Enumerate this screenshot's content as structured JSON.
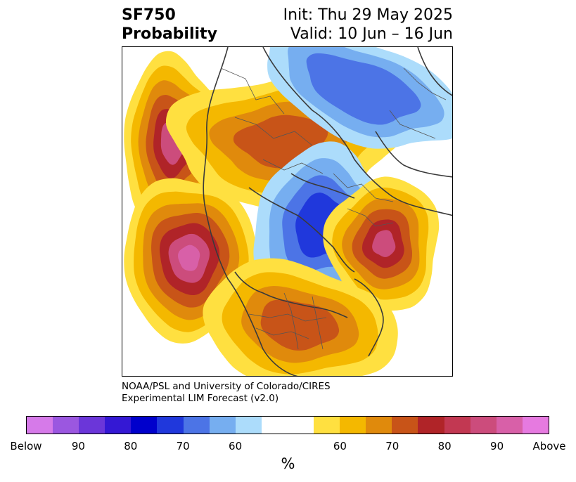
{
  "title": {
    "left_line1": "SF750",
    "left_line2": "Probability",
    "right_line1": "Init: Thu 29 May 2025",
    "right_line2": "Valid: 10 Jun – 16 Jun"
  },
  "credit": {
    "line1": "NOAA/PSL and University of Colorado/CIRES",
    "line2": "Experimental LIM Forecast (v2.0)"
  },
  "colorbar": {
    "unit": "%",
    "labels": [
      "Below",
      "90",
      "80",
      "70",
      "60",
      "60",
      "70",
      "80",
      "90",
      "Above"
    ],
    "colors": [
      "#d67ae9",
      "#9b57e0",
      "#6b36d9",
      "#3418d4",
      "#0000cc",
      "#2038dc",
      "#4c74e6",
      "#76aef0",
      "#acdcfb",
      "#ffffff",
      "#ffe040",
      "#f4b800",
      "#e08a0c",
      "#c85418",
      "#b02428",
      "#c23852",
      "#cc4c7c",
      "#d860a8",
      "#e67ae0"
    ]
  },
  "map": {
    "projection": "north-polar-stereographic",
    "features": [
      {
        "name": "pacific-west-max",
        "category": "Above",
        "colors": [
          "#ffe040",
          "#f4b800",
          "#e08a0c",
          "#c85418",
          "#b02428",
          "#cc4c7c"
        ]
      },
      {
        "name": "pacific-east-max",
        "category": "Above",
        "colors": [
          "#ffe040",
          "#f4b800",
          "#e08a0c",
          "#c85418",
          "#b02428",
          "#cc4c7c",
          "#d860a8"
        ]
      },
      {
        "name": "east-asia-warm",
        "category": "Above",
        "colors": [
          "#ffe040",
          "#f4b800",
          "#e08a0c",
          "#c85418"
        ]
      },
      {
        "name": "europe-arctic-cold",
        "category": "Below",
        "colors": [
          "#acdcfb",
          "#76aef0",
          "#4c74e6",
          "#2038dc"
        ]
      },
      {
        "name": "north-atlantic-max",
        "category": "Above",
        "colors": [
          "#ffe040",
          "#f4b800",
          "#e08a0c",
          "#c85418",
          "#b02428",
          "#cc4c7c"
        ]
      },
      {
        "name": "eastern-us-warm",
        "category": "Above",
        "colors": [
          "#ffe040",
          "#f4b800",
          "#e08a0c",
          "#c85418"
        ]
      },
      {
        "name": "eurasia-northeast-cold",
        "category": "Below",
        "colors": [
          "#acdcfb",
          "#76aef0",
          "#4c74e6"
        ]
      }
    ]
  }
}
